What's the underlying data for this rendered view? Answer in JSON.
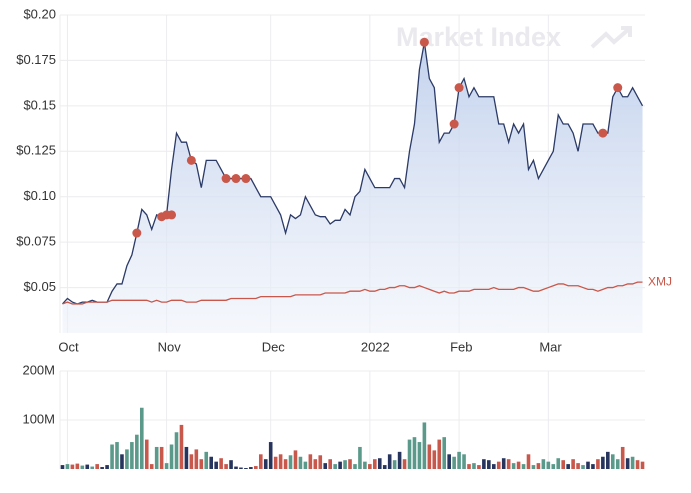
{
  "chart_data": [
    {
      "type": "line",
      "watermark": "Market Index",
      "categories": [
        null,
        "Oct",
        null,
        null,
        null,
        null,
        null,
        null,
        null,
        null,
        null,
        null,
        null,
        null,
        null,
        null,
        null,
        null,
        null,
        null,
        null,
        "Nov",
        null,
        null,
        null,
        null,
        null,
        null,
        null,
        null,
        null,
        null,
        null,
        null,
        null,
        null,
        null,
        null,
        null,
        null,
        null,
        null,
        "Dec",
        null,
        null,
        null,
        null,
        null,
        null,
        null,
        null,
        null,
        null,
        null,
        null,
        null,
        null,
        null,
        null,
        null,
        null,
        null,
        "2022",
        null,
        null,
        null,
        null,
        null,
        null,
        null,
        null,
        null,
        null,
        null,
        null,
        null,
        null,
        null,
        null,
        null,
        "Feb",
        null,
        null,
        null,
        null,
        null,
        null,
        null,
        null,
        null,
        null,
        null,
        null,
        null,
        null,
        null,
        null,
        null,
        "Mar",
        null,
        null,
        null,
        null,
        null,
        null,
        null,
        null,
        null,
        null,
        null,
        null,
        null,
        null,
        null,
        null,
        null,
        null,
        null
      ],
      "ylim": [
        0.025,
        0.2
      ],
      "yticks": [
        {
          "value": 0.05,
          "label": "$0.05"
        },
        {
          "value": 0.075,
          "label": "$0.075"
        },
        {
          "value": 0.1,
          "label": "$0.10"
        },
        {
          "value": 0.125,
          "label": "$0.125"
        },
        {
          "value": 0.15,
          "label": "$0.15"
        },
        {
          "value": 0.175,
          "label": "$0.175"
        },
        {
          "value": 0.2,
          "label": "$0.20"
        }
      ],
      "grid": true,
      "series": [
        {
          "style": "area",
          "color": "#2b3a66",
          "values": [
            0.041,
            0.044,
            0.042,
            0.041,
            0.042,
            0.042,
            0.043,
            0.042,
            0.042,
            0.042,
            0.048,
            0.052,
            0.052,
            0.062,
            0.068,
            0.08,
            0.093,
            0.09,
            0.082,
            0.09,
            0.089,
            0.09,
            0.115,
            0.135,
            0.13,
            0.13,
            0.12,
            0.118,
            0.105,
            0.12,
            0.12,
            0.12,
            0.115,
            0.11,
            0.11,
            0.11,
            0.11,
            0.11,
            0.11,
            0.105,
            0.1,
            0.1,
            0.1,
            0.095,
            0.09,
            0.08,
            0.09,
            0.088,
            0.09,
            0.1,
            0.095,
            0.09,
            0.089,
            0.089,
            0.085,
            0.087,
            0.087,
            0.093,
            0.09,
            0.1,
            0.103,
            0.115,
            0.11,
            0.105,
            0.105,
            0.105,
            0.105,
            0.11,
            0.11,
            0.105,
            0.125,
            0.14,
            0.17,
            0.185,
            0.165,
            0.16,
            0.13,
            0.135,
            0.135,
            0.14,
            0.16,
            0.165,
            0.155,
            0.16,
            0.155,
            0.155,
            0.155,
            0.155,
            0.14,
            0.14,
            0.13,
            0.14,
            0.135,
            0.14,
            0.115,
            0.12,
            0.11,
            0.115,
            0.12,
            0.125,
            0.145,
            0.14,
            0.14,
            0.135,
            0.125,
            0.14,
            0.14,
            0.14,
            0.135,
            0.135,
            0.135,
            0.155,
            0.16,
            0.155,
            0.155,
            0.16,
            0.155,
            0.15
          ]
        },
        {
          "name": "XMJ",
          "style": "line",
          "color": "#c9574a",
          "values": [
            0.041,
            0.042,
            0.041,
            0.041,
            0.041,
            0.042,
            0.042,
            0.042,
            0.042,
            0.042,
            0.043,
            0.043,
            0.043,
            0.043,
            0.043,
            0.043,
            0.043,
            0.043,
            0.042,
            0.043,
            0.042,
            0.042,
            0.043,
            0.043,
            0.043,
            0.042,
            0.042,
            0.042,
            0.043,
            0.043,
            0.043,
            0.043,
            0.043,
            0.043,
            0.044,
            0.044,
            0.044,
            0.044,
            0.044,
            0.044,
            0.045,
            0.045,
            0.045,
            0.045,
            0.045,
            0.045,
            0.045,
            0.046,
            0.046,
            0.046,
            0.046,
            0.046,
            0.046,
            0.047,
            0.047,
            0.047,
            0.047,
            0.047,
            0.048,
            0.048,
            0.048,
            0.049,
            0.048,
            0.048,
            0.049,
            0.049,
            0.05,
            0.05,
            0.051,
            0.051,
            0.05,
            0.05,
            0.051,
            0.05,
            0.049,
            0.048,
            0.047,
            0.048,
            0.047,
            0.047,
            0.048,
            0.048,
            0.048,
            0.049,
            0.049,
            0.049,
            0.049,
            0.05,
            0.049,
            0.049,
            0.049,
            0.049,
            0.05,
            0.05,
            0.049,
            0.048,
            0.048,
            0.049,
            0.05,
            0.051,
            0.052,
            0.052,
            0.051,
            0.051,
            0.051,
            0.05,
            0.049,
            0.049,
            0.048,
            0.049,
            0.05,
            0.05,
            0.051,
            0.051,
            0.052,
            0.052,
            0.053,
            0.053
          ]
        },
        {
          "style": "dots",
          "color": "#c9574a",
          "values": [
            null,
            null,
            null,
            null,
            null,
            null,
            null,
            null,
            null,
            null,
            null,
            null,
            null,
            null,
            null,
            0.08,
            null,
            null,
            null,
            null,
            0.089,
            0.09,
            0.09,
            null,
            null,
            null,
            0.12,
            null,
            null,
            null,
            null,
            null,
            null,
            0.11,
            null,
            0.11,
            null,
            0.11,
            null,
            null,
            null,
            null,
            null,
            null,
            null,
            null,
            null,
            null,
            null,
            null,
            null,
            null,
            null,
            null,
            null,
            null,
            null,
            null,
            null,
            null,
            null,
            null,
            null,
            null,
            null,
            null,
            null,
            null,
            null,
            null,
            null,
            null,
            null,
            0.185,
            null,
            null,
            null,
            null,
            null,
            0.14,
            0.16,
            null,
            null,
            null,
            null,
            null,
            null,
            null,
            null,
            null,
            null,
            null,
            null,
            null,
            null,
            null,
            null,
            null,
            null,
            null,
            null,
            null,
            null,
            null,
            null,
            null,
            null,
            null,
            null,
            0.135,
            null,
            null,
            0.16,
            null,
            null,
            null,
            null,
            null
          ]
        }
      ]
    },
    {
      "type": "bar",
      "ylim": [
        0,
        200000000
      ],
      "yticks": [
        {
          "value": 100000000,
          "label": "100M"
        },
        {
          "value": 200000000,
          "label": "200M"
        }
      ],
      "grid": true,
      "up_color": "#5b9a8b",
      "down_color": "#c8574c",
      "flat_color": "#27355e",
      "values": [
        8000000,
        10000000,
        9000000,
        11000000,
        7000000,
        9000000,
        5000000,
        10000000,
        4000000,
        8000000,
        50000000,
        55000000,
        30000000,
        40000000,
        55000000,
        70000000,
        125000000,
        60000000,
        10000000,
        45000000,
        45000000,
        12000000,
        50000000,
        75000000,
        90000000,
        45000000,
        30000000,
        40000000,
        20000000,
        35000000,
        25000000,
        15000000,
        22000000,
        10000000,
        18000000,
        5000000,
        3000000,
        2000000,
        4000000,
        6000000,
        30000000,
        20000000,
        55000000,
        25000000,
        30000000,
        20000000,
        28000000,
        38000000,
        25000000,
        15000000,
        30000000,
        20000000,
        28000000,
        12000000,
        20000000,
        10000000,
        15000000,
        18000000,
        20000000,
        10000000,
        45000000,
        15000000,
        10000000,
        20000000,
        22000000,
        8000000,
        30000000,
        18000000,
        35000000,
        20000000,
        60000000,
        65000000,
        55000000,
        95000000,
        50000000,
        38000000,
        60000000,
        65000000,
        30000000,
        25000000,
        35000000,
        30000000,
        10000000,
        12000000,
        8000000,
        20000000,
        18000000,
        10000000,
        15000000,
        22000000,
        20000000,
        12000000,
        15000000,
        10000000,
        30000000,
        8000000,
        12000000,
        20000000,
        15000000,
        10000000,
        22000000,
        18000000,
        10000000,
        20000000,
        12000000,
        8000000,
        15000000,
        10000000,
        20000000,
        25000000,
        35000000,
        30000000,
        20000000,
        45000000,
        22000000,
        25000000,
        18000000,
        15000000
      ]
    }
  ]
}
